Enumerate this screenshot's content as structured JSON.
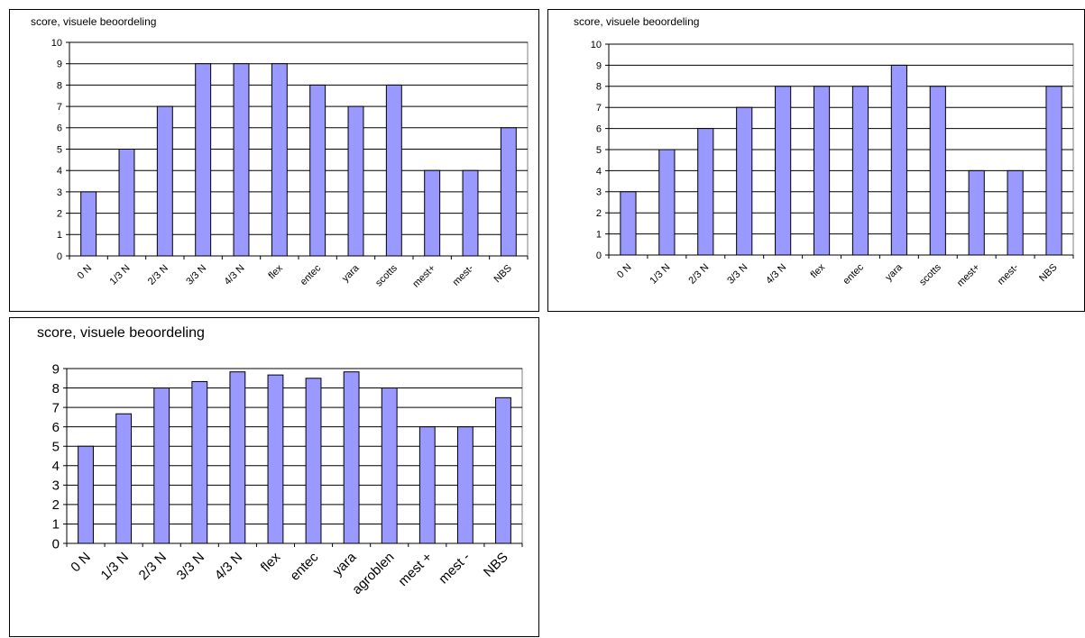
{
  "chart_data": [
    {
      "type": "bar",
      "title": "score, visuele beoordeling",
      "categories": [
        "0 N",
        "1/3 N",
        "2/3 N",
        "3/3 N",
        "4/3 N",
        "flex",
        "entec",
        "yara",
        "scotts",
        "mest+",
        "mest-",
        "NBS"
      ],
      "values": [
        3,
        5,
        7,
        9,
        9,
        9,
        8,
        7,
        8,
        4,
        4,
        6
      ],
      "ylim": [
        0,
        10
      ],
      "yticks": [
        0,
        1,
        2,
        3,
        4,
        5,
        6,
        7,
        8,
        9,
        10
      ],
      "grid": true,
      "bar_color": "#9999ff"
    },
    {
      "type": "bar",
      "title": "score, visuele beoordeling",
      "categories": [
        "0 N",
        "1/3 N",
        "2/3 N",
        "3/3 N",
        "4/3 N",
        "flex",
        "entec",
        "yara",
        "scotts",
        "mest+",
        "mest-",
        "NBS"
      ],
      "values": [
        3,
        5,
        6,
        7,
        8,
        8,
        8,
        9,
        8,
        4,
        4,
        8
      ],
      "ylim": [
        0,
        10
      ],
      "yticks": [
        0,
        1,
        2,
        3,
        4,
        5,
        6,
        7,
        8,
        9,
        10
      ],
      "grid": true,
      "bar_color": "#9999ff"
    },
    {
      "type": "bar",
      "title": "score, visuele beoordeling",
      "categories": [
        "0 N",
        "1/3 N",
        "2/3 N",
        "3/3 N",
        "4/3 N",
        "flex",
        "entec",
        "yara",
        "agroblen",
        "mest +",
        "mest -",
        "NBS"
      ],
      "values": [
        5,
        6.67,
        8,
        8.33,
        8.83,
        8.67,
        8.5,
        8.83,
        8,
        6,
        6,
        7.5
      ],
      "ylim": [
        0,
        9
      ],
      "yticks": [
        0,
        1,
        2,
        3,
        4,
        5,
        6,
        7,
        8,
        9
      ],
      "grid": true,
      "bar_color": "#9999ff"
    }
  ]
}
